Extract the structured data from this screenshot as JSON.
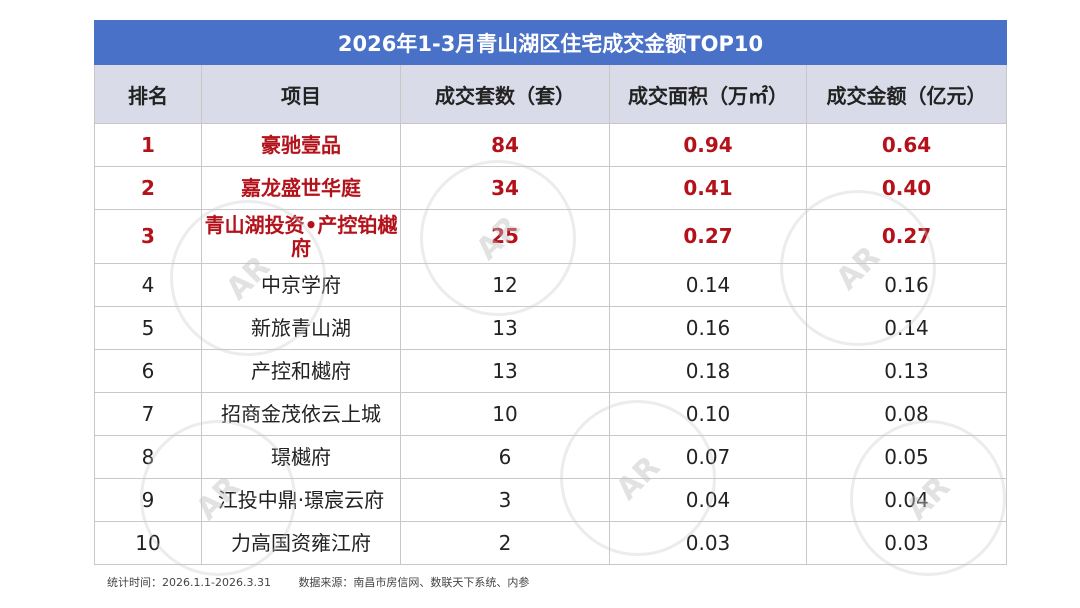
{
  "chart_data": {
    "type": "table",
    "title": "2026年1-3月青山湖区住宅成交金额TOP10",
    "columns": [
      "排名",
      "项目",
      "成交套数（套）",
      "成交面积（万㎡）",
      "成交金额（亿元）"
    ],
    "rows": [
      {
        "rank": "1",
        "project": "豪驰壹品",
        "units": "84",
        "area": "0.94",
        "amount": "0.64",
        "highlight": true
      },
      {
        "rank": "2",
        "project": "嘉龙盛世华庭",
        "units": "34",
        "area": "0.41",
        "amount": "0.40",
        "highlight": true
      },
      {
        "rank": "3",
        "project": "青山湖投资•产控铂樾府",
        "units": "25",
        "area": "0.27",
        "amount": "0.27",
        "highlight": true
      },
      {
        "rank": "4",
        "project": "中京学府",
        "units": "12",
        "area": "0.14",
        "amount": "0.16",
        "highlight": false
      },
      {
        "rank": "5",
        "project": "新旅青山湖",
        "units": "13",
        "area": "0.16",
        "amount": "0.14",
        "highlight": false
      },
      {
        "rank": "6",
        "project": "产控和樾府",
        "units": "13",
        "area": "0.18",
        "amount": "0.13",
        "highlight": false
      },
      {
        "rank": "7",
        "project": "招商金茂依云上城",
        "units": "10",
        "area": "0.10",
        "amount": "0.08",
        "highlight": false
      },
      {
        "rank": "8",
        "project": "璟樾府",
        "units": "6",
        "area": "0.07",
        "amount": "0.05",
        "highlight": false
      },
      {
        "rank": "9",
        "project": "江投中鼎·璟宸云府",
        "units": "3",
        "area": "0.04",
        "amount": "0.04",
        "highlight": false
      },
      {
        "rank": "10",
        "project": "力高国资雍江府",
        "units": "2",
        "area": "0.03",
        "amount": "0.03",
        "highlight": false
      }
    ]
  },
  "footnote": {
    "period": "统计时间：2026.1.1-2026.3.31",
    "source": "数据来源：南昌市房信网、数联天下系统、内参"
  },
  "watermark": {
    "text": "AR"
  },
  "colors": {
    "title_bg": "#4a71c8",
    "header_bg": "#d9dbe8",
    "highlight_text": "#b4121b"
  }
}
